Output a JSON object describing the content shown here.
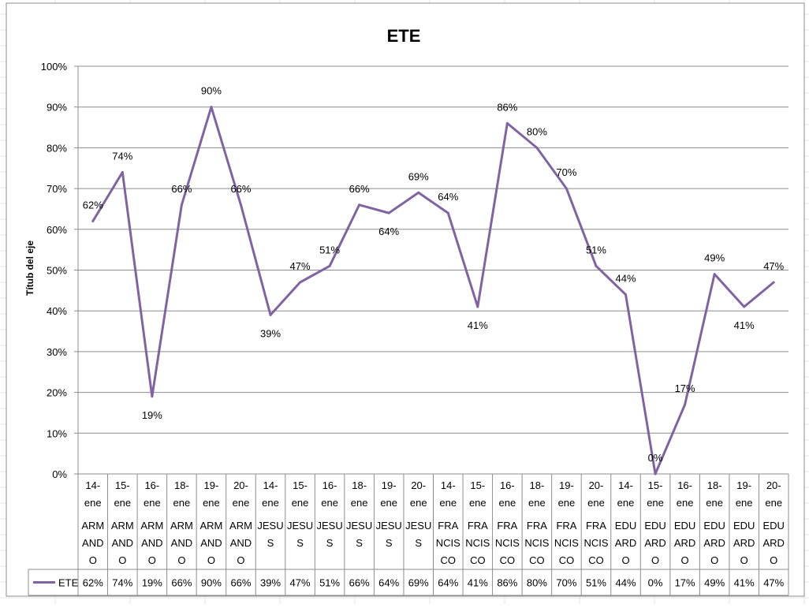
{
  "chart_data": {
    "type": "line",
    "title": "ETE",
    "ylabel": "Títub del eje",
    "ylim": [
      0,
      100
    ],
    "yticks": [
      "0%",
      "10%",
      "20%",
      "30%",
      "40%",
      "50%",
      "60%",
      "70%",
      "80%",
      "90%",
      "100%"
    ],
    "y_unit": "%",
    "grid": true,
    "legend": "data-table-left",
    "categories": [
      {
        "date": "14-ene",
        "person": "ARMANDO",
        "parts": [
          "14-",
          "ene",
          "ARM",
          "AND",
          "O"
        ]
      },
      {
        "date": "15-ene",
        "person": "ARMANDO",
        "parts": [
          "15-",
          "ene",
          "ARM",
          "AND",
          "O"
        ]
      },
      {
        "date": "16-ene",
        "person": "ARMANDO",
        "parts": [
          "16-",
          "ene",
          "ARM",
          "AND",
          "O"
        ]
      },
      {
        "date": "18-ene",
        "person": "ARMANDO",
        "parts": [
          "18-",
          "ene",
          "ARM",
          "AND",
          "O"
        ]
      },
      {
        "date": "19-ene",
        "person": "ARMANDO",
        "parts": [
          "19-",
          "ene",
          "ARM",
          "AND",
          "O"
        ]
      },
      {
        "date": "20-ene",
        "person": "ARMANDO",
        "parts": [
          "20-",
          "ene",
          "ARM",
          "AND",
          "O"
        ]
      },
      {
        "date": "14-ene",
        "person": "JESUS",
        "parts": [
          "14-",
          "ene",
          "JESU",
          "S"
        ]
      },
      {
        "date": "15-ene",
        "person": "JESUS",
        "parts": [
          "15-",
          "ene",
          "JESU",
          "S"
        ]
      },
      {
        "date": "16-ene",
        "person": "JESUS",
        "parts": [
          "16-",
          "ene",
          "JESU",
          "S"
        ]
      },
      {
        "date": "18-ene",
        "person": "JESUS",
        "parts": [
          "18-",
          "ene",
          "JESU",
          "S"
        ]
      },
      {
        "date": "19-ene",
        "person": "JESUS",
        "parts": [
          "19-",
          "ene",
          "JESU",
          "S"
        ]
      },
      {
        "date": "20-ene",
        "person": "JESUS",
        "parts": [
          "20-",
          "ene",
          "JESU",
          "S"
        ]
      },
      {
        "date": "14-ene",
        "person": "FRANCISCO",
        "parts": [
          "14-",
          "ene",
          "FRA",
          "NCIS",
          "CO"
        ]
      },
      {
        "date": "15-ene",
        "person": "FRANCISCO",
        "parts": [
          "15-",
          "ene",
          "FRA",
          "NCIS",
          "CO"
        ]
      },
      {
        "date": "16-ene",
        "person": "FRANCISCO",
        "parts": [
          "16-",
          "ene",
          "FRA",
          "NCIS",
          "CO"
        ]
      },
      {
        "date": "18-ene",
        "person": "FRANCISCO",
        "parts": [
          "18-",
          "ene",
          "FRA",
          "NCIS",
          "CO"
        ]
      },
      {
        "date": "19-ene",
        "person": "FRANCISCO",
        "parts": [
          "19-",
          "ene",
          "FRA",
          "NCIS",
          "CO"
        ]
      },
      {
        "date": "20-ene",
        "person": "FRANCISCO",
        "parts": [
          "20-",
          "ene",
          "FRA",
          "NCIS",
          "CO"
        ]
      },
      {
        "date": "14-ene",
        "person": "EDUARDO",
        "parts": [
          "14-",
          "ene",
          "EDU",
          "ARD",
          "O"
        ]
      },
      {
        "date": "15-ene",
        "person": "EDUARDO",
        "parts": [
          "15-",
          "ene",
          "EDU",
          "ARD",
          "O"
        ]
      },
      {
        "date": "16-ene",
        "person": "EDUARDO",
        "parts": [
          "16-",
          "ene",
          "EDU",
          "ARD",
          "O"
        ]
      },
      {
        "date": "18-ene",
        "person": "EDUARDO",
        "parts": [
          "18-",
          "ene",
          "EDU",
          "ARD",
          "O"
        ]
      },
      {
        "date": "19-ene",
        "person": "EDUARDO",
        "parts": [
          "19-",
          "ene",
          "EDU",
          "ARD",
          "O"
        ]
      },
      {
        "date": "20-ene",
        "person": "EDUARDO",
        "parts": [
          "20-",
          "ene",
          "EDU",
          "ARD",
          "O"
        ]
      }
    ],
    "series": [
      {
        "name": "ETE",
        "color": "#8064a2",
        "values": [
          62,
          74,
          19,
          66,
          90,
          66,
          39,
          47,
          51,
          66,
          64,
          69,
          64,
          41,
          86,
          80,
          70,
          51,
          44,
          0,
          17,
          49,
          41,
          47
        ],
        "labels": [
          "62%",
          "74%",
          "19%",
          "66%",
          "90%",
          "66%",
          "39%",
          "47%",
          "51%",
          "66%",
          "64%",
          "69%",
          "64%",
          "41%",
          "86%",
          "80%",
          "70%",
          "51%",
          "44%",
          "0%",
          "17%",
          "49%",
          "41%",
          "47%"
        ]
      }
    ]
  }
}
